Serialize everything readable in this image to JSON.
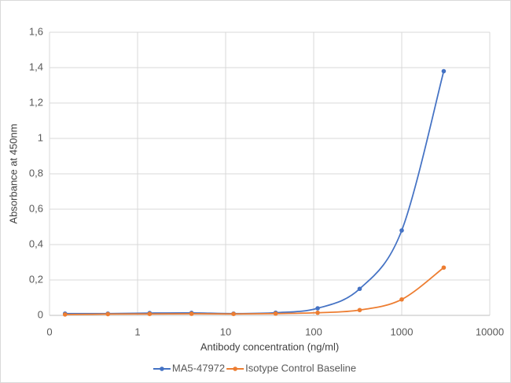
{
  "chart_data": {
    "type": "line",
    "x_label": "Antibody concentration (ng/ml)",
    "y_label": "Absorbance at 450nm",
    "x": [
      0.15,
      0.46,
      1.37,
      4.1,
      12.3,
      37,
      111,
      333,
      1000,
      3000
    ],
    "series": [
      {
        "name": "MA5-47972",
        "color": "#4472c4",
        "values": [
          0.01,
          0.01,
          0.013,
          0.014,
          0.01,
          0.015,
          0.04,
          0.15,
          0.48,
          1.38
        ]
      },
      {
        "name": "Isotype Control Baseline",
        "color": "#ed7d31",
        "values": [
          0.005,
          0.007,
          0.008,
          0.009,
          0.008,
          0.01,
          0.015,
          0.03,
          0.09,
          0.27
        ]
      }
    ],
    "xscale": "log",
    "xlim": [
      0.1,
      10000
    ],
    "xticks": [
      {
        "value": 0.1,
        "label": "0"
      },
      1,
      10,
      100,
      1000,
      10000
    ],
    "ylim": [
      0,
      1.6
    ],
    "yticks": [
      0,
      {
        "value": 0.2,
        "label": "0,2"
      },
      {
        "value": 0.4,
        "label": "0,4"
      },
      {
        "value": 0.6,
        "label": "0,6"
      },
      {
        "value": 0.8,
        "label": "0,8"
      },
      1,
      {
        "value": 1.2,
        "label": "1,2"
      },
      {
        "value": 1.4,
        "label": "1,4"
      },
      {
        "value": 1.6,
        "label": "1,6"
      }
    ],
    "grid": true,
    "smooth": true,
    "legend": "bottom"
  }
}
